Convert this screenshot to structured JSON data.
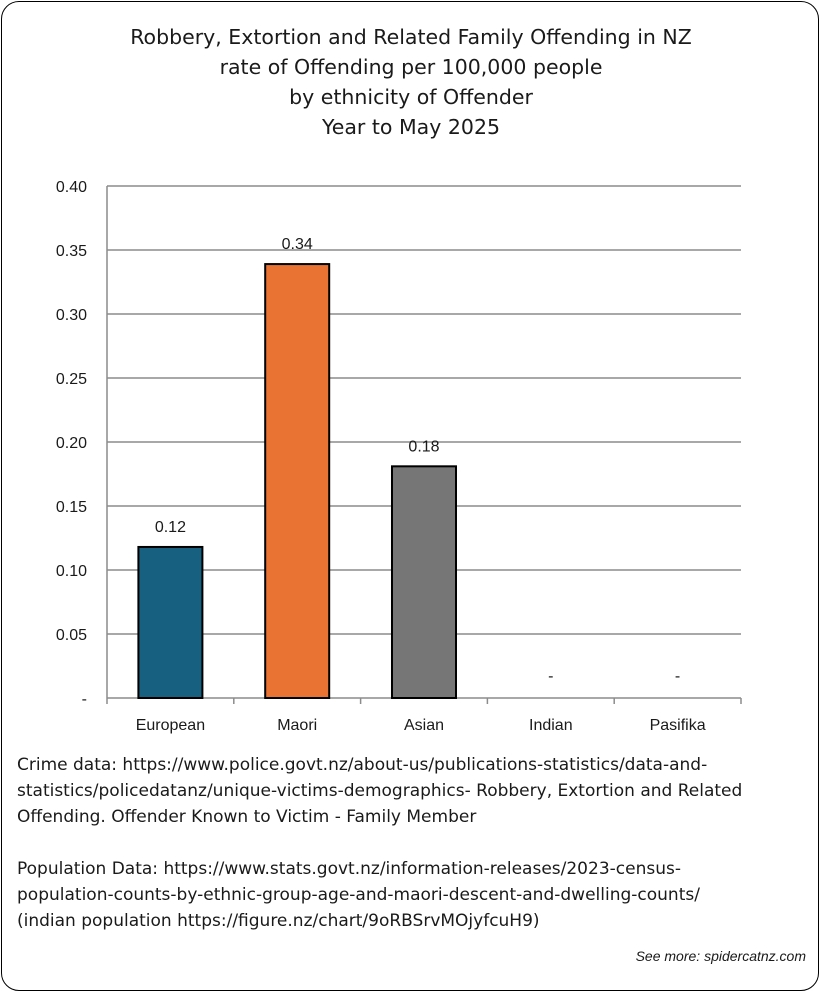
{
  "title_lines": [
    "Robbery, Extortion and Related Family Offending in NZ",
    "rate of Offending per 100,000 people",
    "by ethnicity of Offender",
    "Year to May 2025"
  ],
  "chart_data": {
    "type": "bar",
    "title": "Robbery, Extortion and Related Family Offending in NZ rate of Offending per 100,000 people by ethnicity of Offender Year to May 2025",
    "categories": [
      "European",
      "Maori",
      "Asian",
      "Indian",
      "Pasifika"
    ],
    "values": [
      0.118,
      0.339,
      0.181,
      0,
      0
    ],
    "data_labels": [
      "0.12",
      "0.34",
      "0.18",
      "-",
      "-"
    ],
    "colors": [
      "#17607f",
      "#e97333",
      "#767676",
      "#767676",
      "#767676"
    ],
    "ylim": [
      0,
      0.4
    ],
    "yticks": [
      0,
      0.05,
      0.1,
      0.15,
      0.2,
      0.25,
      0.3,
      0.35,
      0.4
    ],
    "ytick_labels": [
      "-",
      "0.05",
      "0.10",
      "0.15",
      "0.20",
      "0.25",
      "0.30",
      "0.35",
      "0.40"
    ],
    "grid": true,
    "xlabel": "",
    "ylabel": ""
  },
  "notes": {
    "crime_lines": [
      "Crime data: https://www.police.govt.nz/about-us/publications-statistics/data-and-",
      "statistics/policedatanz/unique-victims-demographics- Robbery, Extortion and Related",
      "Offending. Offender Known to Victim - Family Member"
    ],
    "population_lines": [
      "Population Data: https://www.stats.govt.nz/information-releases/2023-census-",
      "population-counts-by-ethnic-group-age-and-maori-descent-and-dwelling-counts/",
      "(indian population https://figure.nz/chart/9oRBSrvMOjyfcuH9)"
    ]
  },
  "footer": "See more: spidercatnz.com"
}
